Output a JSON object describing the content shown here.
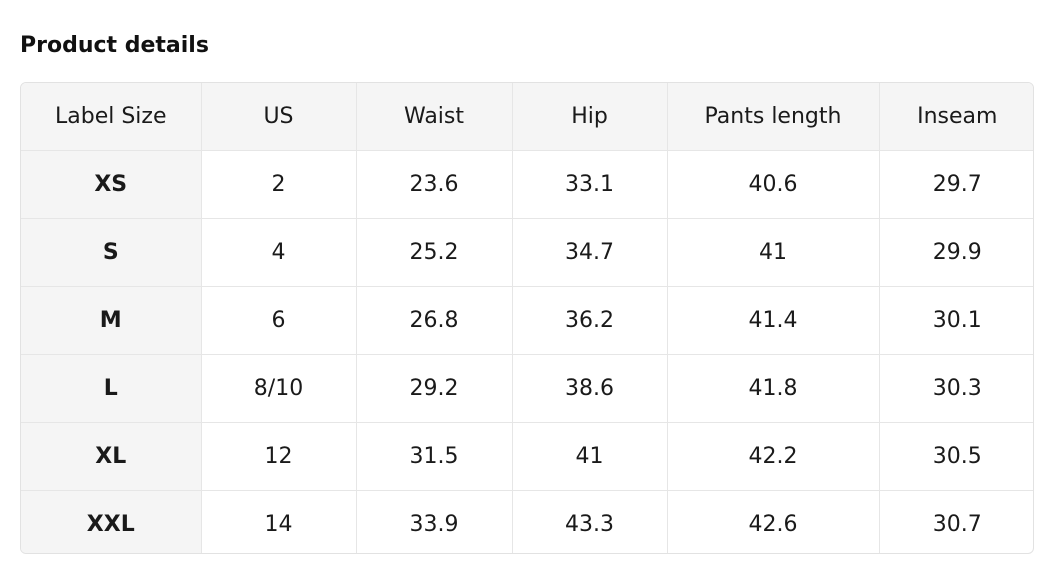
{
  "title": "Product details",
  "table": {
    "headers": [
      "Label Size",
      "US",
      "Waist",
      "Hip",
      "Pants length",
      "Inseam"
    ],
    "rows": [
      [
        "XS",
        "2",
        "23.6",
        "33.1",
        "40.6",
        "29.7"
      ],
      [
        "S",
        "4",
        "25.2",
        "34.7",
        "41",
        "29.9"
      ],
      [
        "M",
        "6",
        "26.8",
        "36.2",
        "41.4",
        "30.1"
      ],
      [
        "L",
        "8/10",
        "29.2",
        "38.6",
        "41.8",
        "30.3"
      ],
      [
        "XL",
        "12",
        "31.5",
        "41",
        "42.2",
        "30.5"
      ],
      [
        "XXL",
        "14",
        "33.9",
        "43.3",
        "42.6",
        "30.7"
      ]
    ]
  }
}
